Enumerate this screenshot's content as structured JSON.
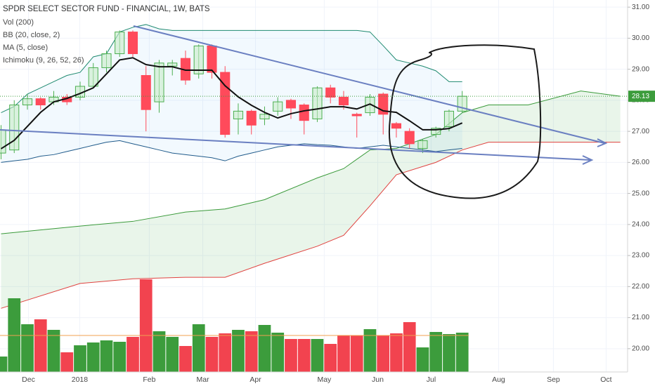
{
  "chart_data": {
    "type": "candlestick",
    "title": "SPDR SELECT SECTOR FUND - FINANCIAL, 1W, BATS",
    "indicators": [
      "Vol (200)",
      "BB (20, close, 2)",
      "MA (5, close)",
      "Ichimoku (9, 26, 52, 26)"
    ],
    "up_color": "#4caf50",
    "down_color": "#ff4a5b",
    "grid": true,
    "xlim": [
      -0.08,
      47.55
    ],
    "xticks": [
      {
        "value": 2.08,
        "label": "Dec"
      },
      {
        "value": 5.97,
        "label": "2018"
      },
      {
        "value": 11.25,
        "label": "Feb"
      },
      {
        "value": 15.31,
        "label": "Mar"
      },
      {
        "value": 19.31,
        "label": "Apr"
      },
      {
        "value": 24.53,
        "label": "May"
      },
      {
        "value": 28.59,
        "label": "Jun"
      },
      {
        "value": 32.64,
        "label": "Jul"
      },
      {
        "value": 37.76,
        "label": "Aug"
      },
      {
        "value": 41.92,
        "label": "Sep"
      },
      {
        "value": 45.92,
        "label": "Oct"
      }
    ],
    "ylim": [
      19.25,
      31.23
    ],
    "yticks": [
      {
        "value": 20,
        "label": "20.00"
      },
      {
        "value": 21,
        "label": "21.00"
      },
      {
        "value": 22,
        "label": "22.00"
      },
      {
        "value": 23,
        "label": "23.00"
      },
      {
        "value": 24,
        "label": "24.00"
      },
      {
        "value": 25,
        "label": "25.00"
      },
      {
        "value": 26,
        "label": "26.00"
      },
      {
        "value": 27,
        "label": "27.00"
      },
      {
        "value": 28,
        "label": "28.00"
      },
      {
        "value": 29,
        "label": "29.00"
      },
      {
        "value": 30,
        "label": "30.00"
      },
      {
        "value": 31,
        "label": "31.00"
      }
    ],
    "x": [
      0,
      1,
      2,
      3,
      4,
      5,
      6,
      7,
      8,
      9,
      10,
      11,
      12,
      13,
      14,
      15,
      16,
      17,
      18,
      19,
      20,
      21,
      22,
      23,
      24,
      25,
      26,
      27,
      28,
      29,
      30,
      31,
      32,
      33,
      34,
      35
    ],
    "open": [
      26.3,
      26.4,
      27.85,
      28.05,
      27.95,
      28.1,
      28.1,
      28.45,
      29.05,
      29.5,
      30.2,
      28.8,
      27.95,
      29.1,
      29.35,
      28.85,
      29.75,
      28.9,
      27.4,
      27.65,
      27.4,
      27.65,
      28.0,
      27.85,
      27.4,
      28.4,
      28.1,
      27.55,
      27.6,
      28.2,
      27.25,
      27.0,
      26.45,
      26.9,
      27.15,
      27.65
    ],
    "high": [
      27.2,
      28.0,
      28.2,
      28.1,
      28.3,
      28.2,
      28.6,
      29.2,
      29.6,
      30.25,
      30.25,
      29.1,
      29.3,
      29.3,
      29.6,
      29.8,
      29.8,
      29.1,
      27.9,
      27.7,
      27.8,
      28.1,
      28.05,
      27.9,
      28.45,
      28.5,
      28.3,
      27.6,
      28.2,
      28.25,
      27.3,
      27.1,
      26.75,
      27.15,
      27.7,
      28.3
    ],
    "low": [
      26.1,
      26.3,
      27.7,
      27.7,
      27.85,
      27.85,
      28.0,
      28.4,
      28.9,
      29.4,
      29.4,
      27.0,
      27.6,
      28.8,
      28.5,
      28.7,
      28.7,
      26.8,
      26.9,
      26.9,
      27.2,
      27.5,
      27.4,
      26.9,
      27.3,
      27.9,
      27.7,
      26.8,
      27.5,
      26.9,
      26.8,
      26.45,
      26.3,
      26.8,
      27.0,
      27.6
    ],
    "close": [
      27.05,
      27.85,
      28.05,
      27.85,
      28.1,
      27.95,
      28.45,
      29.05,
      29.5,
      30.2,
      29.5,
      27.7,
      29.2,
      29.2,
      28.65,
      29.75,
      28.9,
      26.9,
      27.65,
      27.2,
      27.55,
      27.95,
      27.75,
      27.35,
      28.4,
      28.1,
      27.85,
      27.5,
      28.1,
      27.55,
      27.1,
      26.6,
      26.7,
      27.1,
      27.65,
      28.13
    ],
    "ma": [
      26.44,
      26.71,
      27.16,
      27.61,
      27.95,
      28.06,
      28.22,
      28.4,
      28.85,
      29.3,
      29.37,
      29.15,
      29.08,
      29.08,
      28.97,
      28.97,
      28.97,
      28.47,
      28.11,
      27.84,
      27.61,
      27.43,
      27.57,
      27.66,
      27.72,
      27.79,
      27.79,
      27.72,
      27.88,
      27.66,
      27.61,
      27.34,
      27.05,
      27.05,
      27.09,
      27.27
    ],
    "bb_upper": [
      27.6,
      27.8,
      28.2,
      28.4,
      28.6,
      28.8,
      28.9,
      29.4,
      29.5,
      30.2,
      30.35,
      30.44,
      30.3,
      30.25,
      30.25,
      30.25,
      30.25,
      30.25,
      30.25,
      30.25,
      30.25,
      30.25,
      30.25,
      30.25,
      30.25,
      30.25,
      30.25,
      30.25,
      30.2,
      29.76,
      29.3,
      29.2,
      29.1,
      28.95,
      28.6,
      28.6
    ],
    "bb_lower": [
      26.0,
      26.05,
      26.1,
      26.2,
      26.25,
      26.35,
      26.45,
      26.55,
      26.65,
      26.7,
      26.6,
      26.5,
      26.4,
      26.3,
      26.25,
      26.2,
      26.15,
      26.05,
      26.2,
      26.3,
      26.4,
      26.5,
      26.55,
      26.6,
      26.57,
      26.55,
      26.5,
      26.45,
      26.5,
      26.55,
      26.5,
      26.45,
      26.4,
      26.35,
      26.4,
      26.45
    ],
    "ichimoku": {
      "x": [
        0,
        6,
        10,
        14,
        17,
        20,
        24,
        26,
        28,
        30,
        33,
        35,
        37,
        40,
        44,
        47
      ],
      "span_a": [
        23.7,
        23.95,
        24.1,
        24.4,
        24.5,
        24.8,
        25.5,
        25.8,
        26.4,
        26.45,
        26.9,
        27.6,
        27.85,
        27.85,
        28.3,
        28.13
      ],
      "span_b": [
        21.3,
        22.1,
        22.25,
        22.3,
        22.3,
        22.75,
        23.3,
        23.65,
        24.6,
        25.6,
        26.0,
        26.4,
        26.65,
        26.65,
        26.65,
        26.65
      ]
    },
    "volume": [
      22,
      105,
      68,
      75,
      60,
      28,
      38,
      42,
      45,
      43,
      50,
      132,
      58,
      50,
      37,
      68,
      50,
      55,
      60,
      58,
      67,
      56,
      47,
      47,
      47,
      40,
      52,
      52,
      61,
      52,
      55,
      71,
      35,
      57,
      54,
      56
    ],
    "volume_ma": 52
  }
}
